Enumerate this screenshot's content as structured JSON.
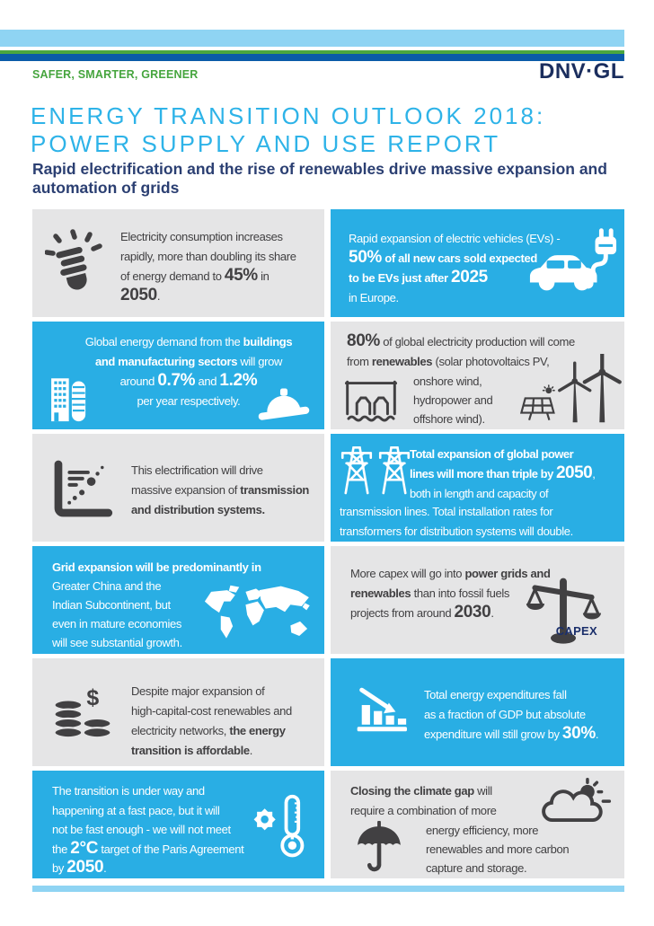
{
  "brand": {
    "tagline": "SAFER, SMARTER, GREENER",
    "logo": "DNV·GL",
    "colors": {
      "cyan_cell": "#29aee4",
      "gray_cell": "#e5e5e6",
      "light_blue_bar": "#8fd4f3",
      "green_bar": "#4aa63f",
      "navy_bar": "#0a5ba8",
      "title_cyan": "#2eb3e8",
      "subtitle_navy": "#2b3f72",
      "tagline_green": "#46a53e",
      "logo_navy": "#1b2e5e",
      "dark_text": "#414042",
      "capex_navy": "#1b2f6b"
    }
  },
  "header": {
    "title_line1": "ENERGY TRANSITION OUTLOOK 2018:",
    "title_line2": "POWER SUPPLY AND USE REPORT",
    "subtitle": "Rapid electrification and the rise of renewables drive massive expansion and\nautomation of grids"
  },
  "cells": [
    {
      "name": "electricity-consumption",
      "icons": [
        "cfl-bulb-icon"
      ],
      "text": [
        {
          "t": "Electricity consumption increases\nrapidly, more than doubling its share\nof energy demand to ",
          "s": "n"
        },
        {
          "t": "45%",
          "s": "x"
        },
        {
          "t": " in\n",
          "s": "n"
        },
        {
          "t": "2050",
          "s": "x"
        },
        {
          "t": ".",
          "s": "n"
        }
      ]
    },
    {
      "name": "electric-vehicles",
      "icons": [
        "electric-car-plug-icon"
      ],
      "text": [
        {
          "t": "Rapid expansion of electric vehicles (EVs) -\n",
          "s": "n"
        },
        {
          "t": "50%",
          "s": "x"
        },
        {
          "t": " of all new cars sold expected\nto be EVs just after ",
          "s": "b"
        },
        {
          "t": "2025",
          "s": "x"
        },
        {
          "t": "\nin Europe.",
          "s": "n"
        }
      ]
    },
    {
      "name": "buildings-manufacturing",
      "icons": [
        "buildings-icon",
        "hard-hat-icon"
      ],
      "text": [
        {
          "t": "Global energy demand from the ",
          "s": "n"
        },
        {
          "t": "buildings\nand manufacturing sectors",
          "s": "b"
        },
        {
          "t": " will grow\naround ",
          "s": "n"
        },
        {
          "t": "0.7%",
          "s": "x"
        },
        {
          "t": " and ",
          "s": "n"
        },
        {
          "t": "1.2%",
          "s": "x"
        },
        {
          "t": "\nper year respectively.",
          "s": "n"
        }
      ]
    },
    {
      "name": "renewables-share",
      "icons": [
        "hydro-dam-icon",
        "solar-panel-icon",
        "wind-turbines-icon"
      ],
      "text": [
        {
          "t": "80%",
          "s": "x"
        },
        {
          "t": " of global electricity production will come\nfrom ",
          "s": "n"
        },
        {
          "t": "renewables",
          "s": "b"
        },
        {
          "t": " (solar photovoltaics PV,",
          "s": "n"
        }
      ],
      "text2": [
        {
          "t": "onshore wind,\nhydropower and\noffshore wind).",
          "s": "n"
        }
      ]
    },
    {
      "name": "transmission-distribution",
      "icons": [
        "scatter-chart-icon"
      ],
      "text": [
        {
          "t": "This electrification will drive\nmassive expansion of ",
          "s": "n"
        },
        {
          "t": "transmission\nand distribution systems.",
          "s": "b"
        }
      ]
    },
    {
      "name": "power-lines-expansion",
      "icons": [
        "transmission-towers-icon"
      ],
      "text": [
        {
          "t": "Total expansion of global power\nlines will more than triple by ",
          "s": "b"
        },
        {
          "t": "2050",
          "s": "x"
        },
        {
          "t": ",\nboth in length and capacity of",
          "s": "n"
        }
      ],
      "text2": [
        {
          "t": "transmission lines. Total installation rates for\ntransformers for  distribution systems will double.",
          "s": "n"
        }
      ]
    },
    {
      "name": "grid-expansion-regions",
      "icons": [
        "world-map-icon"
      ],
      "text": [
        {
          "t": "Grid expansion will be predominantly in\n",
          "s": "b"
        },
        {
          "t": "Greater China and the\nIndian Subcontinent, but\neven in mature economies\nwill see substantial growth.",
          "s": "n"
        }
      ]
    },
    {
      "name": "capex-shift",
      "icons": [
        "capex-scales-icon"
      ],
      "text": [
        {
          "t": "More capex will go into ",
          "s": "n"
        },
        {
          "t": "power grids and\nrenewables",
          "s": "b"
        },
        {
          "t": " than into fossil fuels\nprojects from around ",
          "s": "n"
        },
        {
          "t": "2030",
          "s": "x"
        },
        {
          "t": ".",
          "s": "n"
        }
      ],
      "label": "CAPEX"
    },
    {
      "name": "affordable-transition",
      "icons": [
        "money-coins-icon"
      ],
      "text": [
        {
          "t": "Despite major expansion of\nhigh-capital-cost renewables and\nelectricity networks, ",
          "s": "n"
        },
        {
          "t": "the energy\ntransition is affordable",
          "s": "b"
        },
        {
          "t": ".",
          "s": "n"
        }
      ]
    },
    {
      "name": "energy-expenditure",
      "icons": [
        "declining-bar-chart-icon"
      ],
      "text": [
        {
          "t": "Total energy expenditures fall\nas a fraction of GDP but absolute\nexpenditure will still grow by ",
          "s": "n"
        },
        {
          "t": "30%",
          "s": "x"
        },
        {
          "t": ".",
          "s": "n"
        }
      ]
    },
    {
      "name": "paris-agreement",
      "icons": [
        "thermometer-gear-icon"
      ],
      "text": [
        {
          "t": "The transition is under way and\nhappening at a fast pace, but it will\nnot be fast enough - we will not meet\nthe ",
          "s": "n"
        },
        {
          "t": "2°C",
          "s": "x"
        },
        {
          "t": " target of the Paris Agreement\nby ",
          "s": "n"
        },
        {
          "t": "2050",
          "s": "x"
        },
        {
          "t": ".",
          "s": "n"
        }
      ]
    },
    {
      "name": "climate-gap",
      "icons": [
        "umbrella-icon",
        "cloud-sun-icon"
      ],
      "text": [
        {
          "t": "Closing the climate gap",
          "s": "b"
        },
        {
          "t": " will\nrequire a combination of more",
          "s": "n"
        }
      ],
      "text2": [
        {
          "t": "energy efficiency, more\nrenewables and more carbon\ncapture and storage.",
          "s": "n"
        }
      ]
    }
  ]
}
